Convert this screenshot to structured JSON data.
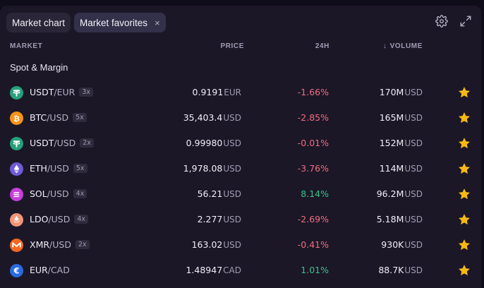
{
  "tabs": [
    {
      "label": "Market chart",
      "active": false
    },
    {
      "label": "Market favorites",
      "active": true,
      "close": "×"
    }
  ],
  "toolbar": {
    "settings_icon": "gear-icon",
    "expand_icon": "expand-icon"
  },
  "columns": {
    "market": "MARKET",
    "price": "PRICE",
    "change": "24H",
    "volume_arrow": "↓",
    "volume": "VOLUME"
  },
  "section_title": "Spot & Margin",
  "colors": {
    "negative": "#f26d80",
    "positive": "#37c48a",
    "star": "#f5b915"
  },
  "rows": [
    {
      "icon": "usdt-icon",
      "coin_color": "#26a17b",
      "base": "USDT",
      "quote": "/EUR",
      "leverage": "3x",
      "price": "0.9191",
      "price_unit": "EUR",
      "change": "-1.66%",
      "change_dir": "neg",
      "volume": "170M",
      "volume_unit": "USD"
    },
    {
      "icon": "btc-icon",
      "coin_color": "#f7931a",
      "base": "BTC",
      "quote": "/USD",
      "leverage": "5x",
      "price": "35,403.4",
      "price_unit": "USD",
      "change": "-2.85%",
      "change_dir": "neg",
      "volume": "165M",
      "volume_unit": "USD"
    },
    {
      "icon": "usdt-icon",
      "coin_color": "#26a17b",
      "base": "USDT",
      "quote": "/USD",
      "leverage": "2x",
      "price": "0.99980",
      "price_unit": "USD",
      "change": "-0.01%",
      "change_dir": "neg",
      "volume": "152M",
      "volume_unit": "USD"
    },
    {
      "icon": "eth-icon",
      "coin_color": "#6f5bd8",
      "base": "ETH",
      "quote": "/USD",
      "leverage": "5x",
      "price": "1,978.08",
      "price_unit": "USD",
      "change": "-3.76%",
      "change_dir": "neg",
      "volume": "114M",
      "volume_unit": "USD"
    },
    {
      "icon": "sol-icon",
      "coin_color": "#c83fd9",
      "base": "SOL",
      "quote": "/USD",
      "leverage": "4x",
      "price": "56.21",
      "price_unit": "USD",
      "change": "8.14%",
      "change_dir": "pos",
      "volume": "96.2M",
      "volume_unit": "USD"
    },
    {
      "icon": "ldo-icon",
      "coin_color": "#f29579",
      "base": "LDO",
      "quote": "/USD",
      "leverage": "4x",
      "price": "2.277",
      "price_unit": "USD",
      "change": "-2.69%",
      "change_dir": "neg",
      "volume": "5.18M",
      "volume_unit": "USD"
    },
    {
      "icon": "xmr-icon",
      "coin_color": "#f26822",
      "base": "XMR",
      "quote": "/USD",
      "leverage": "2x",
      "price": "163.02",
      "price_unit": "USD",
      "change": "-0.41%",
      "change_dir": "neg",
      "volume": "930K",
      "volume_unit": "USD"
    },
    {
      "icon": "euro-icon",
      "coin_color": "#2a6be0",
      "base": "EUR",
      "quote": "/CAD",
      "leverage": "",
      "price": "1.48947",
      "price_unit": "CAD",
      "change": "1.01%",
      "change_dir": "pos",
      "volume": "88.7K",
      "volume_unit": "USD"
    }
  ]
}
